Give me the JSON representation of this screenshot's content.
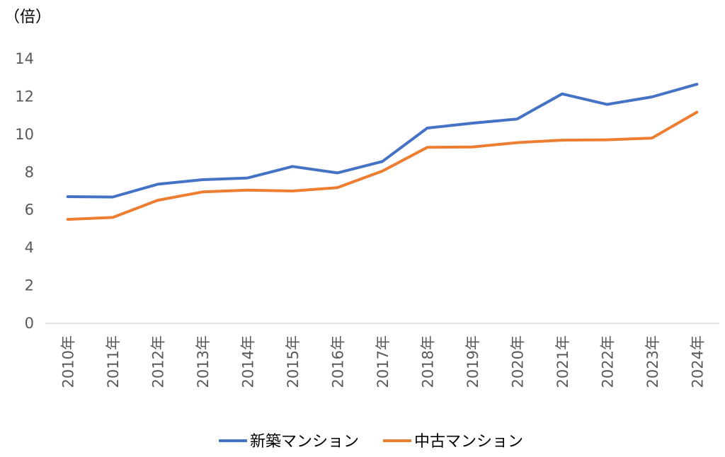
{
  "chart_data": {
    "type": "line",
    "unit_label": "（倍）",
    "categories": [
      "2010年",
      "2011年",
      "2012年",
      "2013年",
      "2014年",
      "2015年",
      "2016年",
      "2017年",
      "2018年",
      "2019年",
      "2020年",
      "2021年",
      "2022年",
      "2023年",
      "2024年"
    ],
    "yticks": [
      "0",
      "2",
      "4",
      "6",
      "8",
      "10",
      "12",
      "14"
    ],
    "ylim": [
      0,
      14
    ],
    "grid": false,
    "legend_position": "bottom",
    "series": [
      {
        "name": "新築マンション",
        "color": "#4472C4",
        "values": [
          6.7,
          6.68,
          7.36,
          7.6,
          7.69,
          8.3,
          7.96,
          8.56,
          10.33,
          10.59,
          10.81,
          12.14,
          11.58,
          11.98,
          12.65
        ]
      },
      {
        "name": "中古マンション",
        "color": "#ED7D31",
        "values": [
          5.5,
          5.6,
          6.51,
          6.95,
          7.05,
          7.0,
          7.18,
          8.05,
          9.31,
          9.33,
          9.56,
          9.69,
          9.71,
          9.8,
          11.17
        ]
      }
    ]
  }
}
